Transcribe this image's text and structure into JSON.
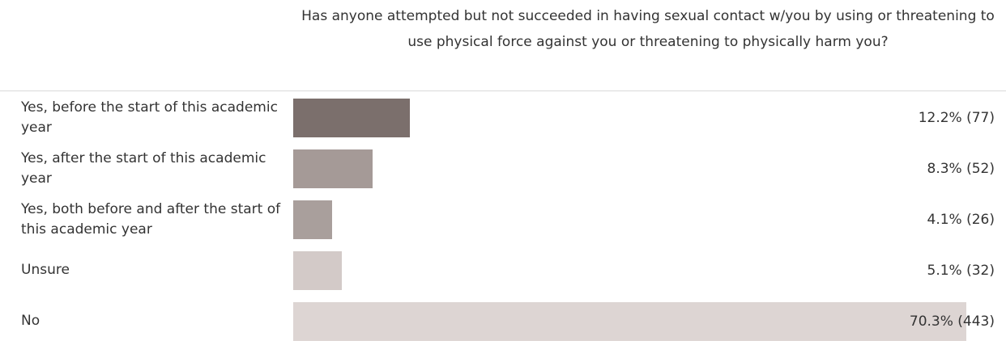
{
  "chart_data": {
    "type": "bar",
    "orientation": "horizontal",
    "title": "Has anyone attempted but not succeeded in having sexual contact w/you by using or threatening to use physical force against you or threatening to physically harm you?",
    "categories": [
      "Yes, before the start of this academic year",
      "Yes, after the start of this academic year",
      "Yes, both before and after the start of this academic year",
      "Unsure",
      "No"
    ],
    "values": [
      12.2,
      8.3,
      4.1,
      5.1,
      70.3
    ],
    "value_labels": [
      "12.2% (77)",
      "8.3% (52)",
      "4.1% (26)",
      "5.1% (32)",
      "70.3% (443)"
    ],
    "colors": [
      "#7b6f6c",
      "#a59a97",
      "#a99f9c",
      "#d3cac8",
      "#ddd5d3"
    ]
  }
}
